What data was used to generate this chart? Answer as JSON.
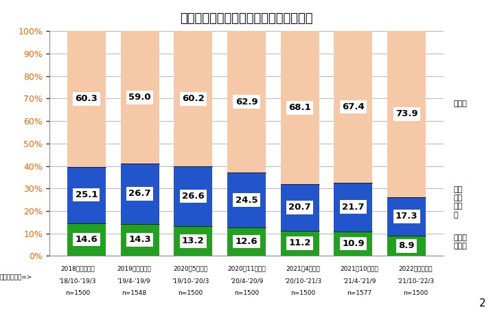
{
  "title": "住宅ローン利用者が利用した金利タイプ",
  "categories": [
    "2018年度第２回",
    "2019年度第１回",
    "2020年5月調査",
    "2020年11月調査",
    "2021年4月調査",
    "2021年10月調査",
    "2022年４月調査"
  ],
  "top_sublabels": [
    "'18/10-'19/3",
    "'19/4-'19/9",
    "'19/10-'20/3",
    "'20/4-'20/9",
    "'20/10-'21/3",
    "'21/4-'21/9",
    "'21/10-'22/3"
  ],
  "n_labels": [
    "n=1500",
    "n=1548",
    "n=1500",
    "n=1500",
    "n=1500",
    "n=1577",
    "n=1500"
  ],
  "fixed_all": [
    14.6,
    14.3,
    13.2,
    12.6,
    11.2,
    10.9,
    8.9
  ],
  "fixed_period": [
    25.1,
    26.7,
    26.6,
    24.5,
    20.7,
    21.7,
    17.3
  ],
  "variable": [
    60.3,
    59.0,
    60.2,
    62.9,
    68.1,
    67.4,
    73.9
  ],
  "color_fixed_all": "#22a020",
  "color_fixed_period": "#2255cc",
  "color_variable": "#f5c9a8",
  "ylabel_prefix": "調査対象期間=>",
  "number_label": "2",
  "bar_width": 0.72,
  "bg_color": "#ffffff",
  "plot_bg_color": "#ffffff",
  "grid_color": "#aaaaaa",
  "ytick_color": "#ee6600",
  "label_fontsize": 9.5,
  "title_fontsize": 13
}
